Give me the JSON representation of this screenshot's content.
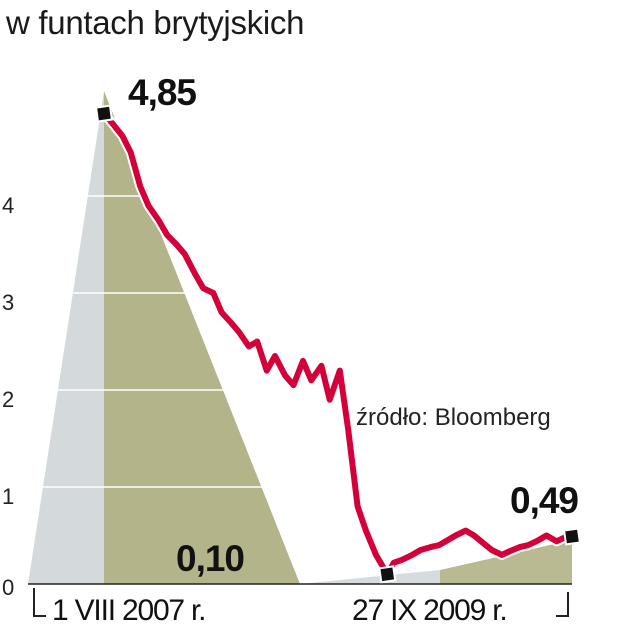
{
  "subtitle": "w funtach brytyjskich",
  "source": "źródło: Bloomberg",
  "colors": {
    "line": "#d4003a",
    "marker": "#111111",
    "axis": "#222222",
    "area_light": "#c5cdcf",
    "area_dark": "#a7a777"
  },
  "chart_data": {
    "type": "line",
    "title": "",
    "xlabel": "",
    "ylabel": "",
    "ylim": [
      0,
      5
    ],
    "yticks": [
      "0",
      "1",
      "2",
      "3",
      "4"
    ],
    "xlim": [
      "2007-08-01",
      "2009-09-27"
    ],
    "x_labels": [
      "1 VIII 2007 r.",
      "27 IX 2009 r."
    ],
    "annotations": [
      {
        "label": "4,85",
        "x": "2007-08-01",
        "y": 4.85
      },
      {
        "label": "0,10",
        "x": "2008-11-20",
        "y": 0.1
      },
      {
        "label": "0,49",
        "x": "2009-09-27",
        "y": 0.49
      }
    ],
    "x": [
      "2007-08-01",
      "2007-08-15",
      "2007-09-01",
      "2007-09-15",
      "2007-10-01",
      "2007-10-15",
      "2007-11-01",
      "2007-11-15",
      "2007-12-01",
      "2007-12-15",
      "2008-01-01",
      "2008-01-15",
      "2008-02-01",
      "2008-02-15",
      "2008-03-01",
      "2008-03-15",
      "2008-04-01",
      "2008-04-15",
      "2008-05-01",
      "2008-05-15",
      "2008-06-01",
      "2008-06-15",
      "2008-07-01",
      "2008-07-15",
      "2008-08-01",
      "2008-08-15",
      "2008-09-01",
      "2008-09-15",
      "2008-10-01",
      "2008-10-15",
      "2008-11-01",
      "2008-11-20",
      "2008-12-01",
      "2008-12-15",
      "2009-01-01",
      "2009-01-15",
      "2009-02-01",
      "2009-02-15",
      "2009-03-01",
      "2009-03-15",
      "2009-04-01",
      "2009-04-15",
      "2009-05-01",
      "2009-05-15",
      "2009-06-01",
      "2009-06-15",
      "2009-07-01",
      "2009-07-15",
      "2009-08-01",
      "2009-08-15",
      "2009-09-01",
      "2009-09-15",
      "2009-09-27"
    ],
    "series": [
      {
        "values": [
          4.85,
          4.75,
          4.62,
          4.45,
          4.1,
          3.9,
          3.75,
          3.6,
          3.5,
          3.4,
          3.2,
          3.05,
          3.0,
          2.8,
          2.7,
          2.6,
          2.45,
          2.5,
          2.2,
          2.35,
          2.15,
          2.05,
          2.3,
          2.1,
          2.25,
          1.9,
          2.2,
          1.6,
          0.8,
          0.55,
          0.3,
          0.1,
          0.22,
          0.25,
          0.3,
          0.35,
          0.38,
          0.4,
          0.45,
          0.5,
          0.55,
          0.5,
          0.42,
          0.35,
          0.3,
          0.34,
          0.38,
          0.4,
          0.45,
          0.5,
          0.44,
          0.48,
          0.49
        ]
      }
    ]
  }
}
